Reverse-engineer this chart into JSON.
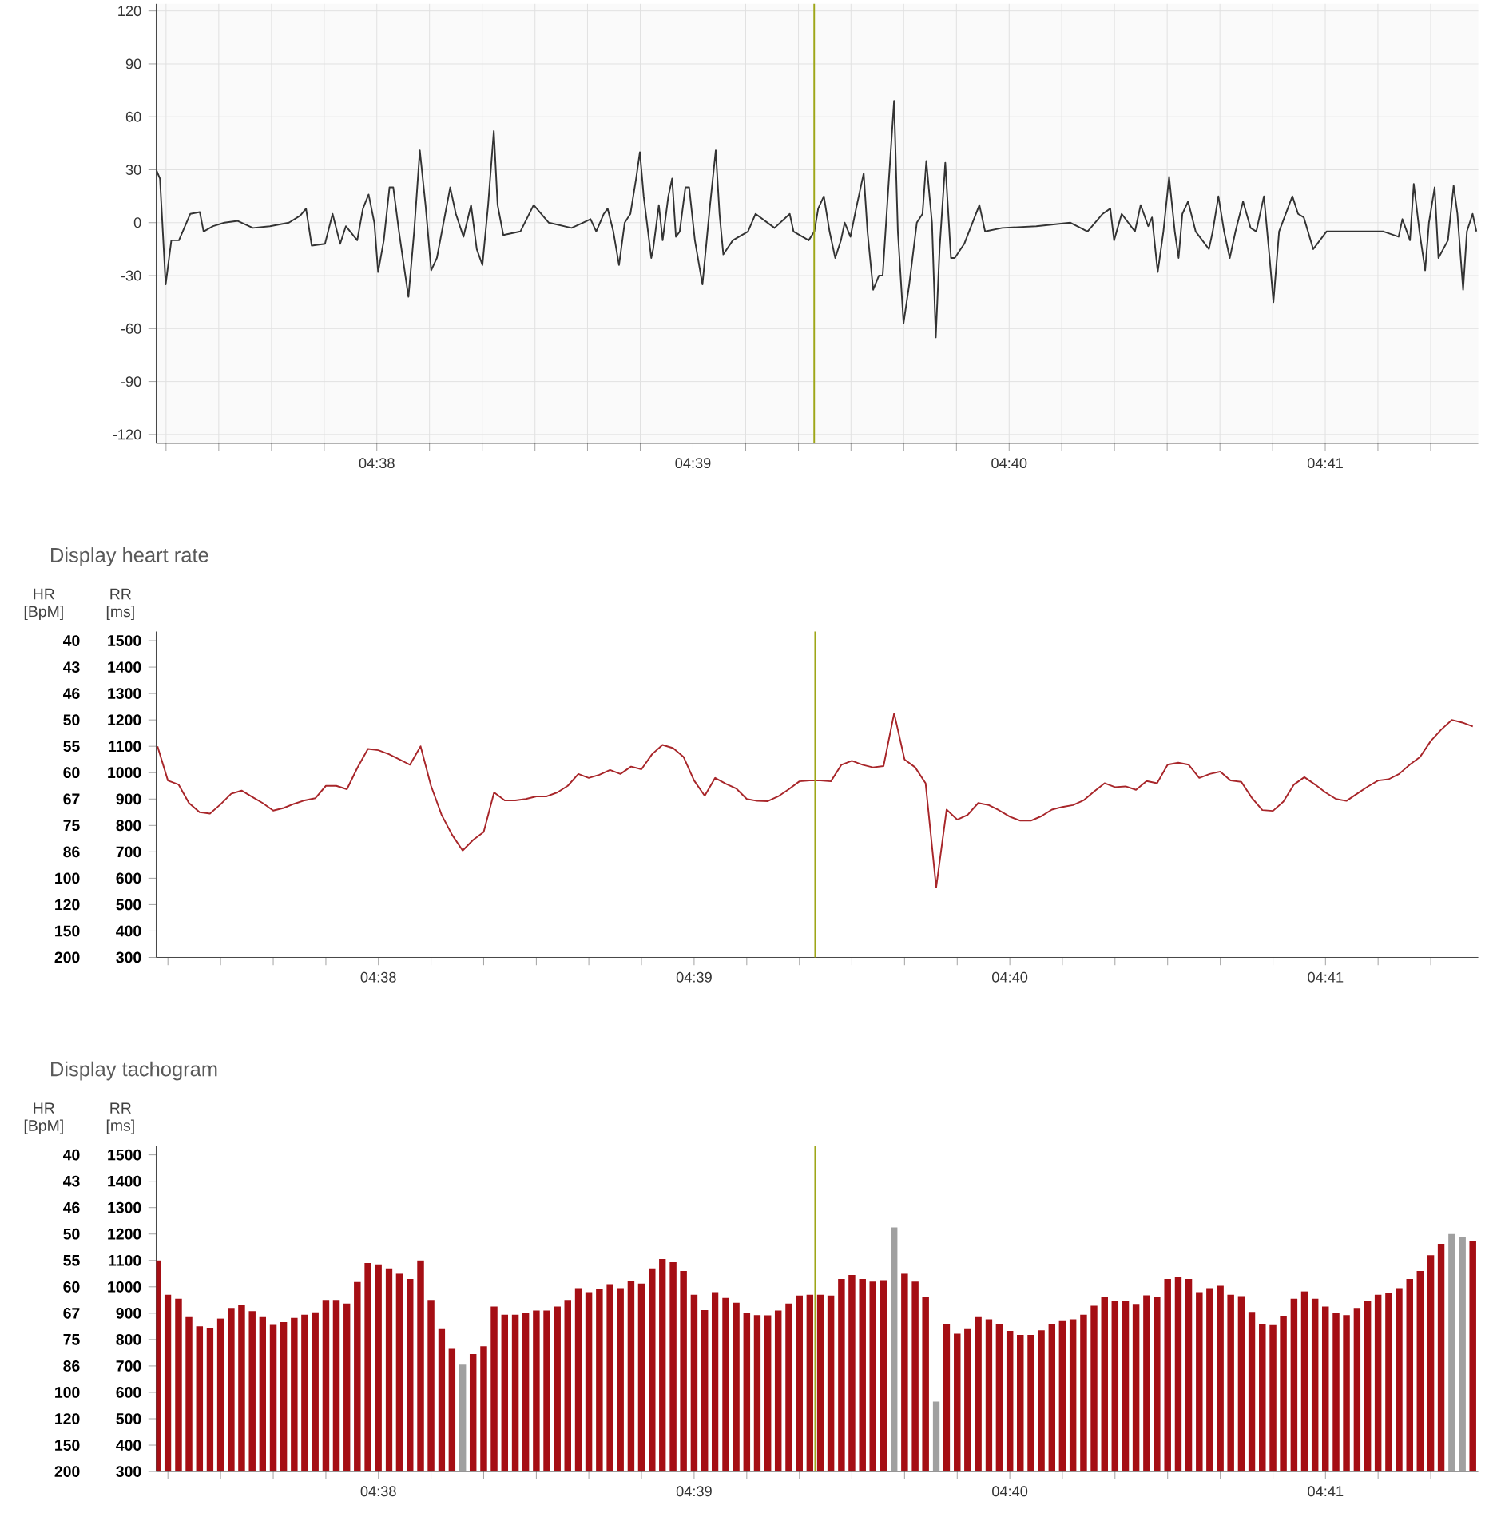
{
  "chart_data": [
    {
      "type": "line",
      "color": "#333333",
      "xlim": [
        4.6217,
        4.6914
      ],
      "ylim": [
        -125,
        124
      ],
      "grid": true,
      "xticks": [
        {
          "value": 4.62222,
          "label": null
        },
        {
          "value": 4.625,
          "label": null
        },
        {
          "value": 4.62778,
          "label": null
        },
        {
          "value": 4.63056,
          "label": null
        },
        {
          "value": 4.633333,
          "label": "04:38"
        },
        {
          "value": 4.63611,
          "label": null
        },
        {
          "value": 4.63889,
          "label": null
        },
        {
          "value": 4.64167,
          "label": null
        },
        {
          "value": 4.64444,
          "label": null
        },
        {
          "value": 4.64722,
          "label": null
        },
        {
          "value": 4.65,
          "label": "04:39"
        },
        {
          "value": 4.65278,
          "label": null
        },
        {
          "value": 4.65556,
          "label": null
        },
        {
          "value": 4.65833,
          "label": null
        },
        {
          "value": 4.66111,
          "label": null
        },
        {
          "value": 4.66389,
          "label": null
        },
        {
          "value": 4.666667,
          "label": "04:40"
        },
        {
          "value": 4.66944,
          "label": null
        },
        {
          "value": 4.67222,
          "label": null
        },
        {
          "value": 4.675,
          "label": null
        },
        {
          "value": 4.67778,
          "label": null
        },
        {
          "value": 4.68056,
          "label": null
        },
        {
          "value": 4.683333,
          "label": "04:41"
        },
        {
          "value": 4.68611,
          "label": null
        },
        {
          "value": 4.68889,
          "label": null
        }
      ],
      "yticks": [
        -120,
        -90,
        -60,
        -30,
        0,
        30,
        60,
        90,
        120
      ],
      "ref_lines": [
        {
          "axis": "x",
          "value": 4.65639,
          "color": "#9ea618"
        }
      ],
      "x": [
        4.6217,
        4.6219,
        4.6222,
        4.6225,
        4.6229,
        4.6235,
        4.624,
        4.6242,
        4.6247,
        4.6253,
        4.626,
        4.6268,
        4.6277,
        4.6287,
        4.6293,
        4.6296,
        4.6299,
        4.6306,
        4.631,
        4.6314,
        4.6317,
        4.6323,
        4.6326,
        4.6329,
        4.6332,
        4.6334,
        4.6337,
        4.634,
        4.6342,
        4.6345,
        4.6347,
        4.635,
        4.6353,
        4.6356,
        4.6359,
        4.6362,
        4.6365,
        4.6372,
        4.6375,
        4.6379,
        4.6383,
        4.6386,
        4.6389,
        4.6392,
        4.6395,
        4.6397,
        4.64,
        4.6409,
        4.6416,
        4.6424,
        4.6436,
        4.6442,
        4.6446,
        4.6449,
        4.6453,
        4.6455,
        4.6458,
        4.6461,
        4.6464,
        4.6467,
        4.647,
        4.6472,
        4.6474,
        4.6478,
        4.6479,
        4.6482,
        4.6484,
        4.6487,
        4.6489,
        4.6491,
        4.6493,
        4.6496,
        4.6498,
        4.6501,
        4.6505,
        4.6509,
        4.6512,
        4.6514,
        4.6516,
        4.6521,
        4.6529,
        4.6533,
        4.6543,
        4.6551,
        4.6553,
        4.6561,
        4.6564,
        4.6566,
        4.6569,
        4.6572,
        4.6575,
        4.6578,
        4.658,
        4.6583,
        4.6586,
        4.659,
        4.6592,
        4.6595,
        4.6598,
        4.66,
        4.6603,
        4.6606,
        4.6608,
        4.6611,
        4.6614,
        4.6618,
        4.6621,
        4.6623,
        4.6626,
        4.6628,
        4.663,
        4.6633,
        4.6636,
        4.6638,
        4.6643,
        4.6651,
        4.6654,
        4.6663,
        4.6681,
        4.6699,
        4.6708,
        4.6716,
        4.672,
        4.6722,
        4.6726,
        4.6733,
        4.6736,
        4.674,
        4.6742,
        4.6745,
        4.6748,
        4.6751,
        4.6754,
        4.6756,
        4.6758,
        4.6761,
        4.6765,
        4.6772,
        4.6774,
        4.6777,
        4.678,
        4.6783,
        4.6786,
        4.679,
        4.6794,
        4.6797,
        4.6801,
        4.6804,
        4.6806,
        4.6809,
        4.6816,
        4.6819,
        4.6822,
        4.6827,
        4.6834,
        4.6845,
        4.6855,
        4.6864,
        4.6872,
        4.6874,
        4.6878,
        4.688,
        4.6883,
        4.6886,
        4.6888,
        4.6891,
        4.6893,
        4.6898,
        4.6901,
        4.6903,
        4.6906,
        4.6908,
        4.6911,
        4.6913
      ],
      "values": [
        30,
        25,
        -35,
        -10,
        -10,
        5,
        6,
        -5,
        -2,
        0,
        1,
        -3,
        -2,
        0,
        4,
        8,
        -13,
        -12,
        5,
        -12,
        -2,
        -10,
        8,
        16,
        0,
        -28,
        -10,
        20,
        20,
        -5,
        -20,
        -42,
        -5,
        41,
        10,
        -27,
        -20,
        20,
        5,
        -8,
        10,
        -15,
        -24,
        10,
        52,
        10,
        -7,
        -5,
        10,
        0,
        -3,
        0,
        2,
        -5,
        5,
        8,
        -5,
        -24,
        0,
        5,
        25,
        40,
        15,
        -20,
        -15,
        10,
        -10,
        15,
        25,
        -8,
        -5,
        20,
        20,
        -10,
        -35,
        10,
        41,
        5,
        -18,
        -10,
        -5,
        5,
        -3,
        5,
        -5,
        -10,
        -5,
        8,
        15,
        -5,
        -20,
        -10,
        0,
        -8,
        8,
        28,
        -5,
        -38,
        -30,
        -30,
        20,
        69,
        -5,
        -57,
        -35,
        0,
        5,
        35,
        0,
        -65,
        -15,
        34,
        -20,
        -20,
        -12,
        10,
        -5,
        -3,
        -2,
        0,
        -5,
        5,
        8,
        -10,
        5,
        -5,
        10,
        -2,
        3,
        -28,
        -5,
        26,
        -5,
        -20,
        5,
        12,
        -5,
        -15,
        -5,
        15,
        -5,
        -20,
        -5,
        12,
        -3,
        -5,
        15,
        -20,
        -45,
        -5,
        15,
        5,
        3,
        -15,
        -5,
        -5,
        -5,
        -5,
        -8,
        2,
        -10,
        22,
        -5,
        -27,
        0,
        20,
        -20,
        -10,
        21,
        5,
        -38,
        -5,
        5,
        -5
      ]
    },
    {
      "type": "line",
      "title": "Display heart rate",
      "ylabel": "RR [ms]",
      "annotations": [
        "HR [BpM]",
        "200",
        "150",
        "120",
        "100",
        "86",
        "75",
        "67",
        "60",
        "55",
        "50",
        "46",
        "43",
        "40"
      ],
      "color": "#a8262a",
      "xlim": [
        4.6216,
        4.6914
      ],
      "ylim": [
        300,
        1535
      ],
      "xticks": [
        {
          "value": 4.62222,
          "label": null
        },
        {
          "value": 4.625,
          "label": null
        },
        {
          "value": 4.62778,
          "label": null
        },
        {
          "value": 4.63056,
          "label": null
        },
        {
          "value": 4.633333,
          "label": "04:38"
        },
        {
          "value": 4.63611,
          "label": null
        },
        {
          "value": 4.63889,
          "label": null
        },
        {
          "value": 4.64167,
          "label": null
        },
        {
          "value": 4.64444,
          "label": null
        },
        {
          "value": 4.64722,
          "label": null
        },
        {
          "value": 4.65,
          "label": "04:39"
        },
        {
          "value": 4.65278,
          "label": null
        },
        {
          "value": 4.65556,
          "label": null
        },
        {
          "value": 4.65833,
          "label": null
        },
        {
          "value": 4.66111,
          "label": null
        },
        {
          "value": 4.66389,
          "label": null
        },
        {
          "value": 4.666667,
          "label": "04:40"
        },
        {
          "value": 4.66944,
          "label": null
        },
        {
          "value": 4.67222,
          "label": null
        },
        {
          "value": 4.675,
          "label": null
        },
        {
          "value": 4.67778,
          "label": null
        },
        {
          "value": 4.68056,
          "label": null
        },
        {
          "value": 4.683333,
          "label": "04:41"
        },
        {
          "value": 4.68611,
          "label": null
        },
        {
          "value": 4.68889,
          "label": null
        }
      ],
      "yticks": [
        300,
        400,
        500,
        600,
        700,
        800,
        900,
        1000,
        1100,
        1200,
        1300,
        1400,
        1500
      ],
      "ref_lines": [
        {
          "axis": "x",
          "value": 4.65639,
          "color": "#9ea618"
        }
      ],
      "x": [
        4.62167,
        4.62222,
        4.62278,
        4.62333,
        4.62389,
        4.62444,
        4.625,
        4.62556,
        4.62611,
        4.62667,
        4.62722,
        4.62778,
        4.62833,
        4.62889,
        4.62944,
        4.63,
        4.63056,
        4.63111,
        4.63167,
        4.63222,
        4.63278,
        4.63333,
        4.63389,
        4.63444,
        4.635,
        4.63556,
        4.63611,
        4.63667,
        4.63722,
        4.63778,
        4.63833,
        4.63889,
        4.63944,
        4.64,
        4.64056,
        4.64111,
        4.64167,
        4.64222,
        4.64278,
        4.64333,
        4.64389,
        4.64444,
        4.645,
        4.64556,
        4.64611,
        4.64667,
        4.64722,
        4.64778,
        4.64833,
        4.64889,
        4.64944,
        4.65,
        4.65056,
        4.65111,
        4.65167,
        4.65222,
        4.65278,
        4.65333,
        4.65389,
        4.65444,
        4.655,
        4.65556,
        4.65611,
        4.65667,
        4.65722,
        4.65778,
        4.65833,
        4.65889,
        4.65944,
        4.66,
        4.66056,
        4.66111,
        4.66167,
        4.66222,
        4.66278,
        4.66333,
        4.66389,
        4.66444,
        4.665,
        4.66556,
        4.66611,
        4.66667,
        4.66722,
        4.66778,
        4.66833,
        4.66889,
        4.66944,
        4.67,
        4.67056,
        4.67111,
        4.67167,
        4.67222,
        4.67278,
        4.67333,
        4.67389,
        4.67444,
        4.675,
        4.67556,
        4.67611,
        4.67667,
        4.67722,
        4.67778,
        4.67833,
        4.67889,
        4.67944,
        4.68,
        4.68056,
        4.68111,
        4.68167,
        4.68222,
        4.68278,
        4.68333,
        4.68389,
        4.68444,
        4.685,
        4.68556,
        4.68611,
        4.68667,
        4.68722,
        4.68778,
        4.68833,
        4.68889,
        4.68944,
        4.69,
        4.69056,
        4.69111
      ],
      "values": [
        1100,
        970,
        955,
        885,
        850,
        845,
        880,
        920,
        932,
        908,
        885,
        856,
        866,
        882,
        895,
        903,
        950,
        950,
        937,
        1018,
        1090,
        1085,
        1070,
        1050,
        1030,
        1100,
        950,
        840,
        765,
        705,
        745,
        775,
        925,
        895,
        895,
        900,
        910,
        910,
        925,
        950,
        995,
        980,
        992,
        1010,
        995,
        1023,
        1013,
        1070,
        1105,
        1093,
        1060,
        970,
        912,
        980,
        958,
        940,
        900,
        893,
        892,
        910,
        937,
        967,
        970,
        970,
        967,
        1030,
        1045,
        1030,
        1020,
        1025,
        1225,
        1050,
        1020,
        960,
        565,
        860,
        822,
        840,
        885,
        877,
        857,
        833,
        818,
        818,
        835,
        860,
        870,
        877,
        895,
        928,
        960,
        945,
        948,
        935,
        968,
        960,
        1030,
        1038,
        1030,
        980,
        995,
        1004,
        970,
        965,
        905,
        858,
        855,
        890,
        955,
        983,
        955,
        925,
        900,
        893,
        920,
        947,
        970,
        975,
        995,
        1030,
        1060,
        1120,
        1163,
        1200,
        1190,
        1175
      ]
    },
    {
      "type": "bar",
      "title": "Display tachogram",
      "ylabel": "RR [ms]",
      "annotations": [
        "HR [BpM]",
        "200",
        "150",
        "120",
        "100",
        "86",
        "75",
        "67",
        "60",
        "55",
        "50",
        "46",
        "43",
        "40"
      ],
      "xlim": [
        4.6216,
        4.6914
      ],
      "ylim": [
        300,
        1535
      ],
      "xticks": [
        {
          "value": 4.62222,
          "label": null
        },
        {
          "value": 4.625,
          "label": null
        },
        {
          "value": 4.62778,
          "label": null
        },
        {
          "value": 4.63056,
          "label": null
        },
        {
          "value": 4.633333,
          "label": "04:38"
        },
        {
          "value": 4.63611,
          "label": null
        },
        {
          "value": 4.63889,
          "label": null
        },
        {
          "value": 4.64167,
          "label": null
        },
        {
          "value": 4.64444,
          "label": null
        },
        {
          "value": 4.64722,
          "label": null
        },
        {
          "value": 4.65,
          "label": "04:39"
        },
        {
          "value": 4.65278,
          "label": null
        },
        {
          "value": 4.65556,
          "label": null
        },
        {
          "value": 4.65833,
          "label": null
        },
        {
          "value": 4.66111,
          "label": null
        },
        {
          "value": 4.66389,
          "label": null
        },
        {
          "value": 4.666667,
          "label": "04:40"
        },
        {
          "value": 4.66944,
          "label": null
        },
        {
          "value": 4.67222,
          "label": null
        },
        {
          "value": 4.675,
          "label": null
        },
        {
          "value": 4.67778,
          "label": null
        },
        {
          "value": 4.68056,
          "label": null
        },
        {
          "value": 4.683333,
          "label": "04:41"
        },
        {
          "value": 4.68611,
          "label": null
        },
        {
          "value": 4.68889,
          "label": null
        }
      ],
      "yticks": [
        300,
        400,
        500,
        600,
        700,
        800,
        900,
        1000,
        1100,
        1200,
        1300,
        1400,
        1500
      ],
      "ref_lines": [
        {
          "axis": "x",
          "value": 4.65639,
          "color": "#9ea618"
        }
      ],
      "x": [
        4.62167,
        4.62222,
        4.62278,
        4.62333,
        4.62389,
        4.62444,
        4.625,
        4.62556,
        4.62611,
        4.62667,
        4.62722,
        4.62778,
        4.62833,
        4.62889,
        4.62944,
        4.63,
        4.63056,
        4.63111,
        4.63167,
        4.63222,
        4.63278,
        4.63333,
        4.63389,
        4.63444,
        4.635,
        4.63556,
        4.63611,
        4.63667,
        4.63722,
        4.63778,
        4.63833,
        4.63889,
        4.63944,
        4.64,
        4.64056,
        4.64111,
        4.64167,
        4.64222,
        4.64278,
        4.64333,
        4.64389,
        4.64444,
        4.645,
        4.64556,
        4.64611,
        4.64667,
        4.64722,
        4.64778,
        4.64833,
        4.64889,
        4.64944,
        4.65,
        4.65056,
        4.65111,
        4.65167,
        4.65222,
        4.65278,
        4.65333,
        4.65389,
        4.65444,
        4.655,
        4.65556,
        4.65611,
        4.65667,
        4.65722,
        4.65778,
        4.65833,
        4.65889,
        4.65944,
        4.66,
        4.66056,
        4.66111,
        4.66167,
        4.66222,
        4.66278,
        4.66333,
        4.66389,
        4.66444,
        4.665,
        4.66556,
        4.66611,
        4.66667,
        4.66722,
        4.66778,
        4.66833,
        4.66889,
        4.66944,
        4.67,
        4.67056,
        4.67111,
        4.67167,
        4.67222,
        4.67278,
        4.67333,
        4.67389,
        4.67444,
        4.675,
        4.67556,
        4.67611,
        4.67667,
        4.67722,
        4.67778,
        4.67833,
        4.67889,
        4.67944,
        4.68,
        4.68056,
        4.68111,
        4.68167,
        4.68222,
        4.68278,
        4.68333,
        4.68389,
        4.68444,
        4.685,
        4.68556,
        4.68611,
        4.68667,
        4.68722,
        4.68778,
        4.68833,
        4.68889,
        4.68944,
        4.69,
        4.69056,
        4.69111
      ],
      "values": [
        1100,
        970,
        955,
        885,
        850,
        845,
        880,
        920,
        932,
        908,
        885,
        856,
        866,
        882,
        895,
        903,
        950,
        950,
        937,
        1018,
        1090,
        1085,
        1070,
        1050,
        1030,
        1100,
        950,
        840,
        765,
        705,
        745,
        775,
        925,
        895,
        895,
        900,
        910,
        910,
        925,
        950,
        995,
        980,
        992,
        1010,
        995,
        1023,
        1013,
        1070,
        1105,
        1093,
        1060,
        970,
        912,
        980,
        958,
        940,
        900,
        893,
        892,
        910,
        937,
        967,
        970,
        970,
        967,
        1030,
        1045,
        1030,
        1020,
        1025,
        1225,
        1050,
        1020,
        960,
        565,
        860,
        822,
        840,
        885,
        877,
        857,
        833,
        818,
        818,
        835,
        860,
        870,
        877,
        895,
        928,
        960,
        945,
        948,
        935,
        968,
        960,
        1030,
        1038,
        1030,
        980,
        995,
        1004,
        970,
        965,
        905,
        858,
        855,
        890,
        955,
        983,
        955,
        925,
        900,
        893,
        920,
        947,
        970,
        975,
        995,
        1030,
        1060,
        1120,
        1163,
        1200,
        1190,
        1175
      ],
      "colors": [
        "#a50e14",
        "#a50e14",
        "#a50e14",
        "#a50e14",
        "#a50e14",
        "#a50e14",
        "#a50e14",
        "#a50e14",
        "#a50e14",
        "#a50e14",
        "#a50e14",
        "#a50e14",
        "#a50e14",
        "#a50e14",
        "#a50e14",
        "#a50e14",
        "#a50e14",
        "#a50e14",
        "#a50e14",
        "#a50e14",
        "#a50e14",
        "#a50e14",
        "#a50e14",
        "#a50e14",
        "#a50e14",
        "#a50e14",
        "#a50e14",
        "#a50e14",
        "#a50e14",
        "#a0a0a0",
        "#a50e14",
        "#a50e14",
        "#a50e14",
        "#a50e14",
        "#a50e14",
        "#a50e14",
        "#a50e14",
        "#a50e14",
        "#a50e14",
        "#a50e14",
        "#a50e14",
        "#a50e14",
        "#a50e14",
        "#a50e14",
        "#a50e14",
        "#a50e14",
        "#a50e14",
        "#a50e14",
        "#a50e14",
        "#a50e14",
        "#a50e14",
        "#a50e14",
        "#a50e14",
        "#a50e14",
        "#a50e14",
        "#a50e14",
        "#a50e14",
        "#a50e14",
        "#a50e14",
        "#a50e14",
        "#a50e14",
        "#a50e14",
        "#a50e14",
        "#a50e14",
        "#a50e14",
        "#a50e14",
        "#a50e14",
        "#a50e14",
        "#a50e14",
        "#a50e14",
        "#a0a0a0",
        "#a50e14",
        "#a50e14",
        "#a50e14",
        "#a0a0a0",
        "#a50e14",
        "#a50e14",
        "#a50e14",
        "#a50e14",
        "#a50e14",
        "#a50e14",
        "#a50e14",
        "#a50e14",
        "#a50e14",
        "#a50e14",
        "#a50e14",
        "#a50e14",
        "#a50e14",
        "#a50e14",
        "#a50e14",
        "#a50e14",
        "#a50e14",
        "#a50e14",
        "#a50e14",
        "#a50e14",
        "#a50e14",
        "#a50e14",
        "#a50e14",
        "#a50e14",
        "#a50e14",
        "#a50e14",
        "#a50e14",
        "#a50e14",
        "#a50e14",
        "#a50e14",
        "#a50e14",
        "#a50e14",
        "#a50e14",
        "#a50e14",
        "#a50e14",
        "#a50e14",
        "#a50e14",
        "#a50e14",
        "#a50e14",
        "#a50e14",
        "#a50e14",
        "#a50e14",
        "#a50e14",
        "#a50e14",
        "#a50e14",
        "#a50e14",
        "#a50e14",
        "#a50e14",
        "#a0a0a0",
        "#a0a0a0",
        "#a50e14"
      ]
    }
  ]
}
